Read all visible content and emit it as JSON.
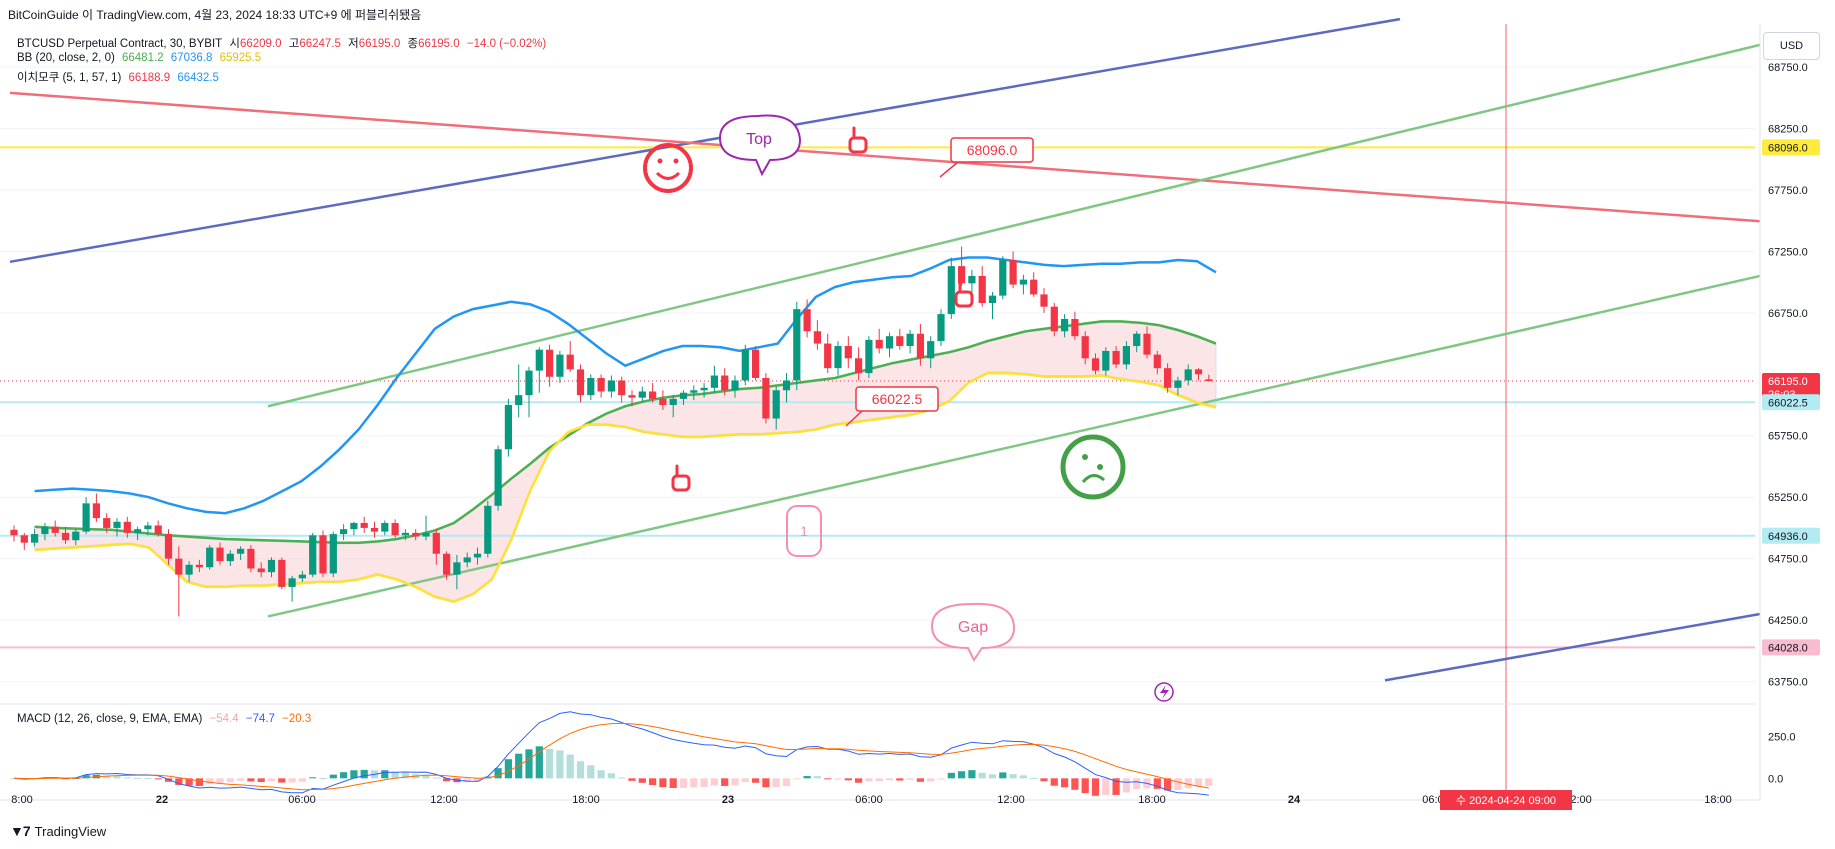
{
  "header": {
    "caption": "BitCoinGuide 이 TradingView.com, 4월 23, 2024 18:33 UTC+9 에 퍼블리쉬됐음"
  },
  "legend": {
    "symbol": "BTCUSD Perpetual Contract, 30, BYBIT",
    "open_label": "시",
    "open": "66209.0",
    "high_label": "고",
    "high": "66247.5",
    "low_label": "저",
    "low": "66195.0",
    "close_label": "종",
    "close": "66195.0",
    "change": "−14.0 (−0.02%)",
    "bb_label": "BB (20, close, 2, 0)",
    "bb_basis": "66481.2",
    "bb_upper": "67036.8",
    "bb_lower": "65925.5",
    "ichi_label": "이치모쿠 (5, 1, 57, 1)",
    "ichi_a": "66188.9",
    "ichi_b": "66432.5",
    "macd_label": "MACD (12, 26, close, 9, EMA, EMA)",
    "macd_hist": "−54.4",
    "macd_line": "−74.7",
    "macd_signal": "−20.3"
  },
  "toolbar": {
    "currency": "USD"
  },
  "footer": {
    "brand": "TradingView"
  },
  "colors": {
    "up": "#089981",
    "down": "#f23645",
    "bb_upper": "#2196f3",
    "bb_basis": "#4caf50",
    "ichi_span": "#ffeb3b",
    "cloud": "#f8d0d3",
    "channel_green": "#81c784",
    "channel_blue": "#5c6bc0",
    "red_line": "#f06e7a",
    "yellow_level": "#ffeb3b"
  },
  "annotations": {
    "top_bubble": "Top",
    "gap_bubble": "Gap",
    "price_label_upper": "68096.0",
    "price_label_mid": "66022.5",
    "box_label": "1"
  },
  "chart_data": {
    "type": "candlestick",
    "title": "BTCUSD Perpetual Contract, 30, BYBIT",
    "y_axis": {
      "ticks": [
        "68750.0",
        "68250.0",
        "67750.0",
        "67250.0",
        "66750.0",
        "65750.0",
        "65250.0",
        "64750.0",
        "64250.0",
        "63750.0"
      ],
      "range": [
        63600,
        69100
      ],
      "highlighted_labels": [
        {
          "value": "68096.0",
          "color": "#ffeb3b",
          "text_color": "#131722"
        },
        {
          "value": "66195.0",
          "color": "#f23645",
          "text_color": "#ffffff",
          "sub": "26:03"
        },
        {
          "value": "66022.5",
          "color": "#b2ebf2",
          "text_color": "#131722"
        },
        {
          "value": "64936.0",
          "color": "#b2ebf2",
          "text_color": "#131722"
        },
        {
          "value": "64028.0",
          "color": "#f8bbd0",
          "text_color": "#131722"
        }
      ]
    },
    "x_axis": {
      "ticks": [
        "8:00",
        "22",
        "06:00",
        "12:00",
        "18:00",
        "23",
        "06:00",
        "12:00",
        "18:00",
        "24",
        "06:00",
        "12:00",
        "18:00"
      ],
      "crosshair_label": "수 2024-04-24 09:00"
    },
    "macd_axis": {
      "ticks": [
        "250.0",
        "0.0"
      ],
      "range": [
        -100,
        380
      ]
    },
    "horizontal_levels": [
      68096.0,
      66022.5,
      64936.0,
      64028.0,
      66195.0
    ],
    "candles": [
      [
        64985,
        65020,
        64890,
        64940
      ],
      [
        64940,
        64960,
        64820,
        64880
      ],
      [
        64880,
        64990,
        64850,
        64950
      ],
      [
        64950,
        65040,
        64900,
        65010
      ],
      [
        65010,
        65060,
        64930,
        64960
      ],
      [
        64960,
        65010,
        64870,
        64900
      ],
      [
        64900,
        64990,
        64860,
        64970
      ],
      [
        64970,
        65250,
        64950,
        65200
      ],
      [
        65200,
        65280,
        65050,
        65080
      ],
      [
        65080,
        65120,
        64960,
        65000
      ],
      [
        65000,
        65080,
        64930,
        65050
      ],
      [
        65050,
        65090,
        64920,
        64960
      ],
      [
        64960,
        65010,
        64900,
        64990
      ],
      [
        64990,
        65050,
        64940,
        65020
      ],
      [
        65020,
        65060,
        64930,
        64950
      ],
      [
        64950,
        64990,
        64700,
        64750
      ],
      [
        64750,
        64850,
        64280,
        64620
      ],
      [
        64620,
        64730,
        64560,
        64700
      ],
      [
        64700,
        64740,
        64640,
        64680
      ],
      [
        64680,
        64860,
        64660,
        64840
      ],
      [
        64840,
        64880,
        64700,
        64730
      ],
      [
        64730,
        64820,
        64690,
        64790
      ],
      [
        64790,
        64850,
        64740,
        64830
      ],
      [
        64830,
        64860,
        64640,
        64670
      ],
      [
        64670,
        64720,
        64600,
        64640
      ],
      [
        64640,
        64760,
        64600,
        64740
      ],
      [
        64740,
        64760,
        64500,
        64520
      ],
      [
        64520,
        64610,
        64400,
        64590
      ],
      [
        64590,
        64650,
        64560,
        64620
      ],
      [
        64620,
        64960,
        64600,
        64940
      ],
      [
        64940,
        64980,
        64600,
        64630
      ],
      [
        64630,
        64970,
        64600,
        64950
      ],
      [
        64950,
        65030,
        64900,
        64990
      ],
      [
        64990,
        65050,
        64940,
        65040
      ],
      [
        65040,
        65090,
        64960,
        65000
      ],
      [
        65000,
        65050,
        64920,
        64970
      ],
      [
        64970,
        65060,
        64940,
        65040
      ],
      [
        65040,
        65070,
        64920,
        64940
      ],
      [
        64940,
        64990,
        64900,
        64960
      ],
      [
        64960,
        64990,
        64900,
        64930
      ],
      [
        64930,
        65100,
        64900,
        64960
      ],
      [
        64960,
        64990,
        64700,
        64790
      ],
      [
        64790,
        64810,
        64580,
        64620
      ],
      [
        64620,
        64780,
        64500,
        64720
      ],
      [
        64720,
        64800,
        64680,
        64760
      ],
      [
        64760,
        64840,
        64700,
        64790
      ],
      [
        64790,
        65220,
        64760,
        65180
      ],
      [
        65180,
        65670,
        65140,
        65640
      ],
      [
        65640,
        66050,
        65580,
        66000
      ],
      [
        66000,
        66330,
        65900,
        66080
      ],
      [
        66080,
        66310,
        65900,
        66280
      ],
      [
        66280,
        66470,
        66100,
        66450
      ],
      [
        66450,
        66490,
        66150,
        66230
      ],
      [
        66230,
        66440,
        66180,
        66410
      ],
      [
        66410,
        66520,
        66270,
        66290
      ],
      [
        66290,
        66330,
        66020,
        66080
      ],
      [
        66080,
        66250,
        66040,
        66220
      ],
      [
        66220,
        66250,
        66060,
        66110
      ],
      [
        66110,
        66240,
        66060,
        66200
      ],
      [
        66200,
        66230,
        66020,
        66080
      ],
      [
        66080,
        66120,
        65990,
        66060
      ],
      [
        66060,
        66150,
        66020,
        66110
      ],
      [
        66110,
        66180,
        66020,
        66050
      ],
      [
        66050,
        66120,
        65960,
        66000
      ],
      [
        66000,
        66080,
        65900,
        66050
      ],
      [
        66050,
        66120,
        66000,
        66100
      ],
      [
        66100,
        66160,
        66040,
        66120
      ],
      [
        66120,
        66180,
        66060,
        66140
      ],
      [
        66140,
        66320,
        66100,
        66240
      ],
      [
        66240,
        66300,
        66080,
        66120
      ],
      [
        66120,
        66240,
        66060,
        66200
      ],
      [
        66200,
        66490,
        66160,
        66450
      ],
      [
        66450,
        66480,
        66200,
        66220
      ],
      [
        66220,
        66260,
        65850,
        65890
      ],
      [
        65890,
        66150,
        65800,
        66120
      ],
      [
        66120,
        66260,
        66020,
        66200
      ],
      [
        66200,
        66840,
        66120,
        66780
      ],
      [
        66780,
        66860,
        66550,
        66600
      ],
      [
        66600,
        66690,
        66450,
        66500
      ],
      [
        66500,
        66580,
        66260,
        66300
      ],
      [
        66300,
        66520,
        66240,
        66480
      ],
      [
        66480,
        66560,
        66300,
        66380
      ],
      [
        66380,
        66470,
        66200,
        66260
      ],
      [
        66260,
        66560,
        66220,
        66530
      ],
      [
        66530,
        66620,
        66420,
        66460
      ],
      [
        66460,
        66590,
        66390,
        66560
      ],
      [
        66560,
        66620,
        66450,
        66480
      ],
      [
        66480,
        66610,
        66420,
        66580
      ],
      [
        66580,
        66660,
        66320,
        66380
      ],
      [
        66380,
        66560,
        66300,
        66520
      ],
      [
        66520,
        66780,
        66480,
        66740
      ],
      [
        66740,
        67200,
        66700,
        67130
      ],
      [
        67130,
        67290,
        66970,
        66990
      ],
      [
        66990,
        67100,
        66900,
        67050
      ],
      [
        67050,
        67130,
        66800,
        66830
      ],
      [
        66830,
        66920,
        66700,
        66890
      ],
      [
        66890,
        67210,
        66860,
        67180
      ],
      [
        67180,
        67250,
        66950,
        66980
      ],
      [
        66980,
        67060,
        66900,
        67020
      ],
      [
        67020,
        67080,
        66880,
        66900
      ],
      [
        66900,
        66950,
        66750,
        66800
      ],
      [
        66800,
        66830,
        66560,
        66600
      ],
      [
        66600,
        66740,
        66550,
        66700
      ],
      [
        66700,
        66760,
        66530,
        66560
      ],
      [
        66560,
        66600,
        66330,
        66380
      ],
      [
        66380,
        66420,
        66250,
        66280
      ],
      [
        66280,
        66470,
        66240,
        66440
      ],
      [
        66440,
        66480,
        66300,
        66330
      ],
      [
        66330,
        66520,
        66290,
        66480
      ],
      [
        66480,
        66600,
        66430,
        66580
      ],
      [
        66580,
        66640,
        66380,
        66410
      ],
      [
        66410,
        66440,
        66250,
        66300
      ],
      [
        66300,
        66340,
        66100,
        66140
      ],
      [
        66140,
        66230,
        66080,
        66200
      ],
      [
        66200,
        66330,
        66160,
        66290
      ],
      [
        66290,
        66300,
        66200,
        66250
      ],
      [
        66209,
        66247,
        66195,
        66195
      ]
    ],
    "series": [
      {
        "name": "BB upper",
        "values": [
          65300,
          65310,
          65320,
          65310,
          65300,
          65280,
          65250,
          65200,
          65160,
          65130,
          65120,
          65160,
          65220,
          65300,
          65380,
          65500,
          65640,
          65800,
          66000,
          66220,
          66420,
          66620,
          66720,
          66780,
          66810,
          66840,
          66820,
          66760,
          66660,
          66540,
          66420,
          66320,
          66380,
          66440,
          66480,
          66480,
          66470,
          66440,
          66470,
          66500,
          66700,
          66880,
          66960,
          67000,
          67020,
          67040,
          67050,
          67110,
          67180,
          67200,
          67200,
          67180,
          67160,
          67140,
          67130,
          67140,
          67150,
          67150,
          67160,
          67160,
          67180,
          67170,
          67080
        ]
      },
      {
        "name": "BB basis",
        "values": [
          65010,
          65000,
          64995,
          64990,
          64985,
          64970,
          64955,
          64940,
          64930,
          64920,
          64910,
          64905,
          64900,
          64895,
          64890,
          64885,
          64880,
          64880,
          64890,
          64910,
          64940,
          64980,
          65040,
          65150,
          65270,
          65400,
          65520,
          65650,
          65750,
          65850,
          65930,
          65990,
          66030,
          66060,
          66080,
          66090,
          66110,
          66130,
          66140,
          66160,
          66180,
          66200,
          66220,
          66260,
          66300,
          66340,
          66370,
          66400,
          66430,
          66470,
          66520,
          66560,
          66600,
          66620,
          66640,
          66660,
          66680,
          66680,
          66670,
          66650,
          66610,
          66560,
          66500
        ]
      },
      {
        "name": "Ichimoku span",
        "values": [
          64820,
          64830,
          64840,
          64850,
          64860,
          64870,
          64840,
          64700,
          64560,
          64520,
          64520,
          64530,
          64530,
          64540,
          64550,
          64560,
          64560,
          64580,
          64620,
          64580,
          64520,
          64440,
          64400,
          64460,
          64580,
          64900,
          65300,
          65620,
          65780,
          65840,
          65840,
          65820,
          65780,
          65760,
          65740,
          65740,
          65750,
          65760,
          65760,
          65770,
          65780,
          65800,
          65840,
          65860,
          65880,
          65900,
          65920,
          65960,
          66030,
          66180,
          66260,
          66260,
          66250,
          66230,
          66230,
          66230,
          66240,
          66210,
          66190,
          66160,
          66080,
          66020,
          65980
        ]
      }
    ]
  }
}
